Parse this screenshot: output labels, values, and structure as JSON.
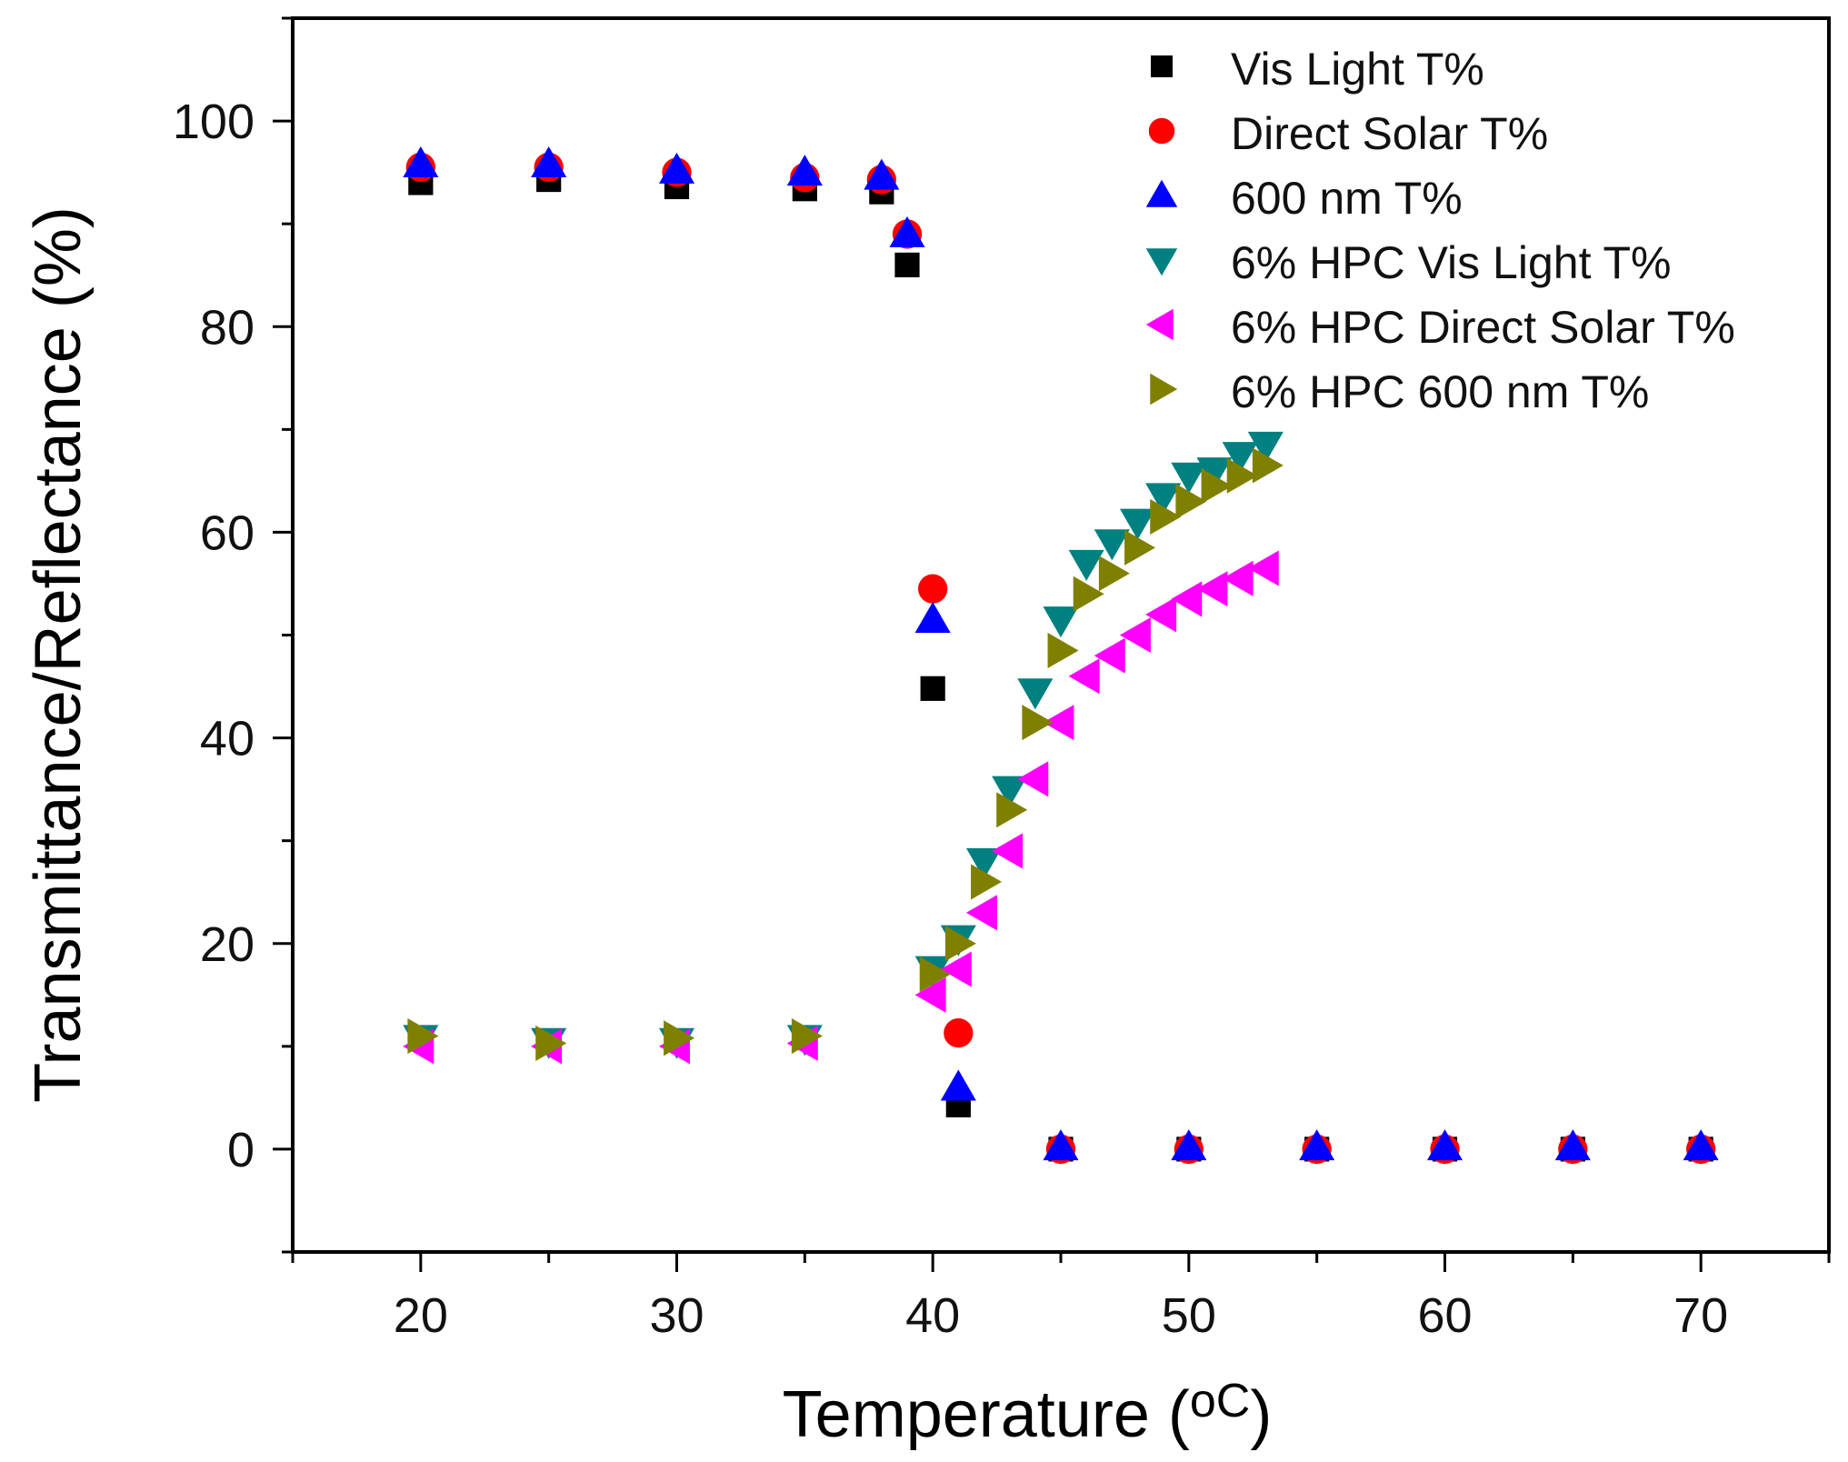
{
  "chart_data": {
    "type": "scatter",
    "title": "",
    "xlabel": "Temperature (",
    "xlabel_unit": "oC",
    "xlabel_close": ")",
    "ylabel": "Transmittance/Reflectance (%)",
    "xlim": [
      15,
      75
    ],
    "ylim": [
      -10,
      110
    ],
    "grid": false,
    "legend_position": "top-right",
    "x_ticks": [
      {
        "value": 20,
        "label": "20"
      },
      {
        "value": 30,
        "label": "30"
      },
      {
        "value": 40,
        "label": "40"
      },
      {
        "value": 50,
        "label": "50"
      },
      {
        "value": 60,
        "label": "60"
      },
      {
        "value": 70,
        "label": "70"
      }
    ],
    "y_ticks": [
      {
        "value": 0,
        "label": "0"
      },
      {
        "value": 20,
        "label": "20"
      },
      {
        "value": 40,
        "label": "40"
      },
      {
        "value": 60,
        "label": "60"
      },
      {
        "value": 80,
        "label": "80"
      },
      {
        "value": 100,
        "label": "100"
      }
    ],
    "series": [
      {
        "name": "Vis Light T%",
        "marker": "square",
        "color": "#000000",
        "x": [
          20,
          25,
          30,
          35,
          38,
          39,
          40,
          41,
          45,
          50,
          55,
          60,
          65,
          70
        ],
        "y": [
          94.0,
          94.3,
          93.6,
          93.4,
          93.1,
          86.0,
          44.8,
          4.3,
          0,
          0,
          0,
          0,
          0,
          0
        ]
      },
      {
        "name": "Direct Solar T%",
        "marker": "circle",
        "color": "#ff0000",
        "x": [
          20,
          25,
          30,
          35,
          38,
          39,
          40,
          41,
          45,
          50,
          55,
          60,
          65,
          70
        ],
        "y": [
          95.5,
          95.5,
          95.0,
          94.5,
          94.3,
          89.0,
          54.5,
          11.3,
          0,
          0,
          0,
          0,
          0,
          0
        ]
      },
      {
        "name": "600 nm T%",
        "marker": "triangle-up",
        "color": "#0000ff",
        "x": [
          20,
          25,
          30,
          35,
          38,
          39,
          40,
          41,
          45,
          50,
          55,
          60,
          65,
          70
        ],
        "y": [
          95.8,
          95.8,
          95.2,
          95.0,
          94.6,
          89.0,
          51.5,
          6.0,
          0.2,
          0.2,
          0.2,
          0.2,
          0.2,
          0.2
        ]
      },
      {
        "name": "6% HPC Vis Light T%",
        "marker": "triangle-down",
        "color": "#008080",
        "x": [
          20,
          25,
          30,
          35,
          40,
          41,
          42,
          43,
          44,
          45,
          46,
          47,
          48,
          49,
          50,
          51,
          52,
          53
        ],
        "y": [
          10.8,
          10.5,
          10.5,
          10.8,
          17.5,
          20.5,
          28.0,
          35.0,
          44.5,
          51.5,
          57.0,
          59.0,
          61.0,
          63.5,
          65.5,
          66.0,
          67.5,
          68.5
        ]
      },
      {
        "name": "6% HPC Direct Solar T%",
        "marker": "triangle-left",
        "color": "#ff00ff",
        "x": [
          20,
          25,
          30,
          35,
          40,
          41,
          42,
          43,
          44,
          45,
          46,
          47,
          48,
          49,
          50,
          51,
          52,
          53
        ],
        "y": [
          10.0,
          10.0,
          10.0,
          10.3,
          15.0,
          17.5,
          23.0,
          29.0,
          36.0,
          41.5,
          46.0,
          48.0,
          50.0,
          52.0,
          53.5,
          54.5,
          55.5,
          56.5
        ]
      },
      {
        "name": "6% HPC 600 nm T%",
        "marker": "triangle-right",
        "color": "#808000",
        "x": [
          20,
          25,
          30,
          35,
          40,
          41,
          42,
          43,
          44,
          45,
          46,
          47,
          48,
          49,
          50,
          51,
          52,
          53
        ],
        "y": [
          11.0,
          10.3,
          10.8,
          11.0,
          17.0,
          20.0,
          26.0,
          33.0,
          41.5,
          48.5,
          54.0,
          56.0,
          58.5,
          61.5,
          63.0,
          64.5,
          65.5,
          66.5
        ]
      }
    ]
  }
}
